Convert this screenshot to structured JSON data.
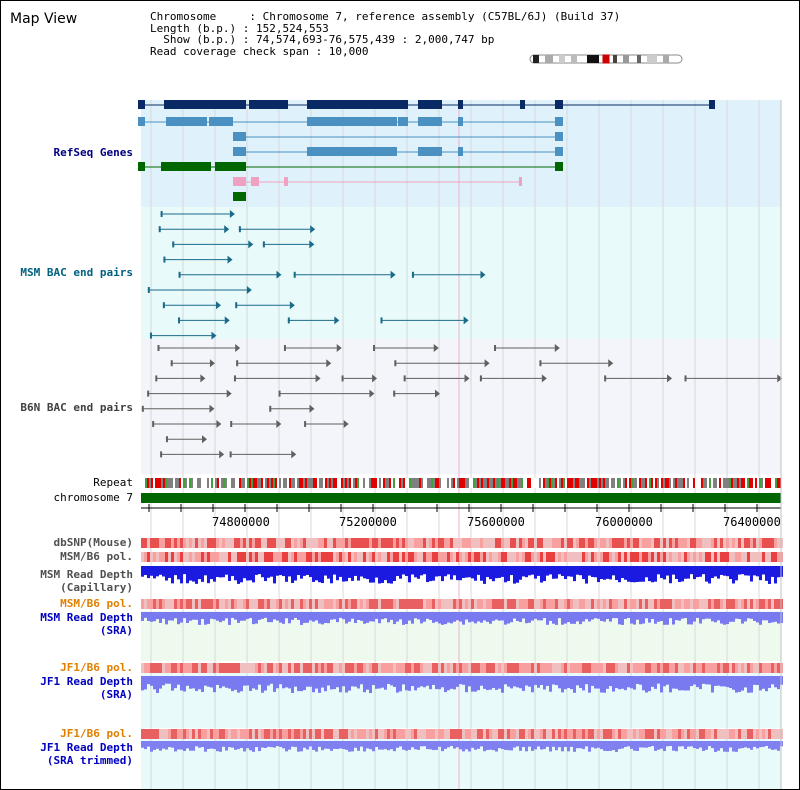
{
  "title": "Map View",
  "info": {
    "line1": "Chromosome     : Chromosome 7, reference assembly (C57BL/6J) (Build 37)",
    "line2": "Length (b.p.) : 152,524,553",
    "line3": "  Show (b.p.) : 74,574,693-76,575,439 : 2,000,747 bp",
    "line4": "Read coverage check span : 10,000"
  },
  "tracks": {
    "refseq": "RefSeq Genes",
    "msm_bac": "MSM BAC end pairs",
    "b6n_bac": "B6N BAC end pairs",
    "repeat": "Repeat",
    "chromosome": "chromosome 7",
    "dbsnp": "dbSNP(Mouse)",
    "msm_b6_pol_1": "MSM/B6 pol.",
    "msm_read_depth_cap_1": "MSM Read Depth",
    "msm_read_depth_cap_2": "(Capillary)",
    "msm_b6_pol_2": "MSM/B6 pol.",
    "msm_read_depth_sra_1": "MSM Read Depth",
    "msm_read_depth_sra_2": "(SRA)",
    "jf1_b6_pol_1": "JF1/B6 pol.",
    "jf1_read_depth_sra_1": "JF1 Read Depth",
    "jf1_read_depth_sra_2": "(SRA)",
    "jf1_b6_pol_2": "JF1/B6 pol.",
    "jf1_read_depth_trim_1": "JF1 Read Depth",
    "jf1_read_depth_trim_2": "(SRA trimmed)"
  },
  "axis": {
    "ticks": [
      "74800000",
      "75200000",
      "75600000",
      "76000000",
      "76400000"
    ]
  },
  "colors": {
    "refseq_bg": "#dff2fb",
    "msm_bg": "#e8fafa",
    "b6n_bg": "#f4f4fb",
    "gene_dark": "#0a2a66",
    "gene_mid": "#4a90c0",
    "gene_green": "#006600",
    "chrom_green": "#006600",
    "snp_red": "#f07070",
    "depth_blue": "#1a1ae0",
    "depth_light": "#7a7af0"
  }
}
